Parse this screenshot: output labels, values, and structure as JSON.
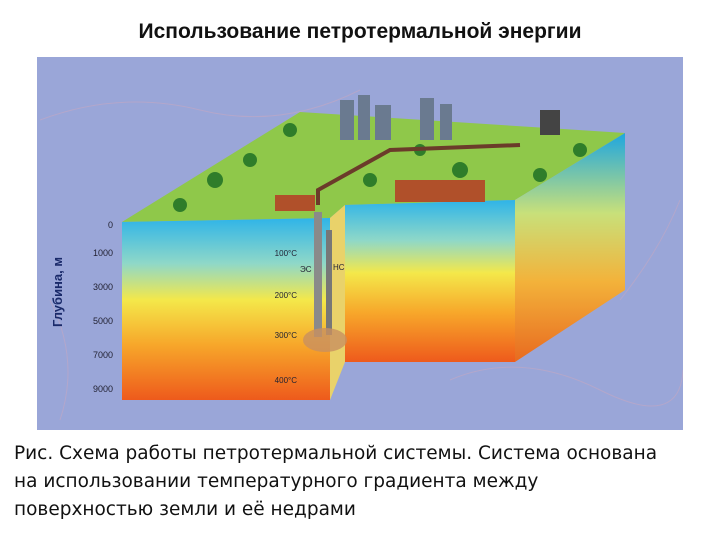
{
  "title": "Использование петротермальной энергии",
  "figure": {
    "depth_axis_label": "Глубина, м",
    "depth_labels": [
      "0",
      "1000",
      "3000",
      "5000",
      "7000",
      "9000"
    ],
    "temperature_labels": [
      "100°C",
      "200°C",
      "300°C",
      "400°C"
    ],
    "station_labels": [
      "ЭС",
      "НС"
    ]
  },
  "caption": [
    "Рис. Схема работы петротермальной системы. Система основана",
    "на использовании температурного градиента между",
    "поверхностью земли и её недрами"
  ]
}
